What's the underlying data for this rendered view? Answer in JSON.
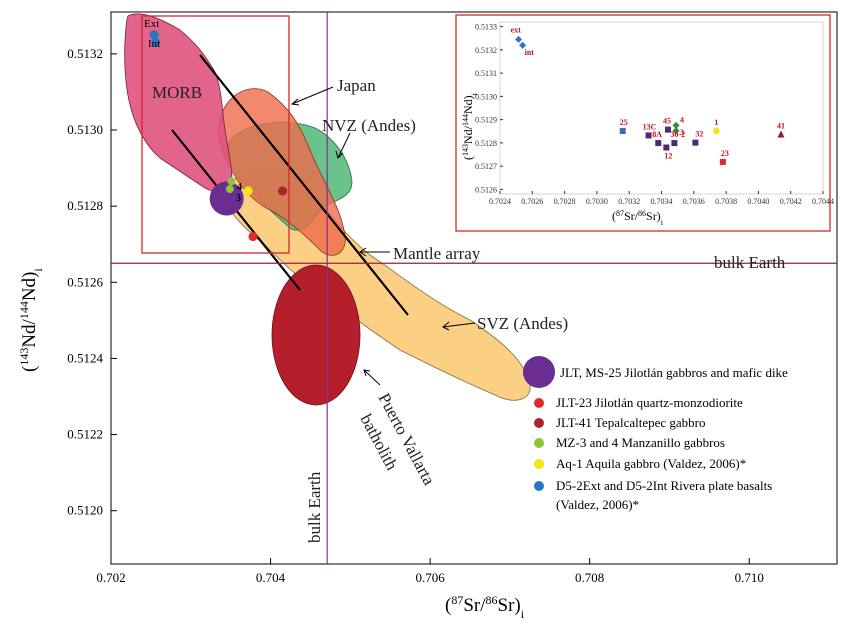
{
  "chart_data": {
    "type": "scatter",
    "title": "",
    "xlabel_main": "Sr/",
    "xlabel_sup1": "87",
    "xlabel_sup2": "86",
    "xlabel_tail": "Sr)",
    "xlabel_sub": "i",
    "ylabel_main": "Nd/",
    "ylabel_sup1": "143",
    "ylabel_sup2": "144",
    "ylabel_tail": "Nd)",
    "ylabel_sub": "i",
    "xlim": [
      0.702,
      0.7111
    ],
    "ylim": [
      0.51186,
      0.51331
    ],
    "xticks": [
      "0.702",
      "0.704",
      "0.706",
      "0.708",
      "0.710"
    ],
    "xtick_values": [
      0.702,
      0.704,
      0.706,
      0.708,
      0.71
    ],
    "yticks": [
      "0.5120",
      "0.5122",
      "0.5124",
      "0.5126",
      "0.5128",
      "0.5130",
      "0.5132"
    ],
    "ytick_values": [
      0.512,
      0.5122,
      0.5124,
      0.5126,
      0.5128,
      0.513,
      0.5132
    ],
    "reference_lines": {
      "bulk_earth_nd": 0.51265,
      "bulk_earth_sr": 0.70471,
      "label_horizontal": "bulk Earth",
      "label_vertical": "bulk Earth"
    },
    "regions": [
      {
        "name": "MORB",
        "label": "MORB"
      },
      {
        "name": "Japan",
        "label": "Japan"
      },
      {
        "name": "NVZ (Andes)",
        "label": "NVZ (Andes)"
      },
      {
        "name": "SVZ (Andes)",
        "label": "SVZ (Andes)"
      },
      {
        "name": "Mantle array",
        "label": "Mantle array"
      },
      {
        "name": "Puerto Vallarta batholith",
        "label_line1": "Puerto Vallarta",
        "label_line2": "batholith"
      }
    ],
    "series": [
      {
        "name": "JLT, MS-25 Jilotlán gabbros and mafic dike",
        "color": "#6a2e93",
        "points": [
          {
            "x": 0.70345,
            "y": 0.51282
          }
        ]
      },
      {
        "name": "JLT-23 Jilotlán quartz-monzodiorite",
        "color": "#e32a2a",
        "points": [
          {
            "x": 0.70378,
            "y": 0.51272
          }
        ]
      },
      {
        "name": "JLT-41 Tepalcaltepec gabbro",
        "color": "#a8252a",
        "points": [
          {
            "x": 0.70415,
            "y": 0.51284
          }
        ]
      },
      {
        "name": "MZ-3 and 4 Manzanillo gabbros",
        "color": "#8cc63f",
        "points": [
          {
            "x": 0.70349,
            "y": 0.512845,
            "label": "3"
          },
          {
            "x": 0.70351,
            "y": 0.512865,
            "label": "4"
          }
        ]
      },
      {
        "name": "Aq-1 Aquila gabbro (Valdez, 2006)*",
        "color": "#f5e60d",
        "points": [
          {
            "x": 0.70372,
            "y": 0.51284
          }
        ]
      },
      {
        "name": "D5-2Ext and D5-2Int Rivera plate basalts (Valdez, 2006)*",
        "color": "#2577c2",
        "points": [
          {
            "x": 0.70254,
            "y": 0.51325,
            "label": "Ext"
          },
          {
            "x": 0.70256,
            "y": 0.51323,
            "label": "Int"
          }
        ]
      }
    ],
    "legend": [
      {
        "label": "JLT, MS-25 Jilotlán gabbros and mafic dike",
        "color": "#6a2e93"
      },
      {
        "label": "JLT-23 Jilotlán quartz-monzodiorite",
        "color": "#e32a2a"
      },
      {
        "label": "JLT-41 Tepalcaltepec gabbro",
        "color": "#a8252a"
      },
      {
        "label": "MZ-3 and 4 Manzanillo gabbros",
        "color": "#8cc63f"
      },
      {
        "label": "Aq-1 Aquila gabbro (Valdez, 2006)*",
        "color": "#f5e60d"
      },
      {
        "label_line1": "D5-2Ext and D5-2Int Rivera plate basalts",
        "label_line2": "(Valdez, 2006)*",
        "color": "#2577c2"
      }
    ],
    "inset": {
      "type": "scatter",
      "xlim": [
        0.7024,
        0.7044
      ],
      "ylim": [
        0.51258,
        0.51332
      ],
      "xticks": [
        "0.7024",
        "0.7026",
        "0.7028",
        "0.7030",
        "0.7032",
        "0.7034",
        "0.7036",
        "0.7038",
        "0.7040",
        "0.7042",
        "0.7044"
      ],
      "xtick_values": [
        0.7024,
        0.7026,
        0.7028,
        0.703,
        0.7032,
        0.7034,
        0.7036,
        0.7038,
        0.704,
        0.7042,
        0.7044
      ],
      "yticks": [
        "0.5126",
        "0.5127",
        "0.5128",
        "0.5129",
        "0.5130",
        "0.5131",
        "0.5132",
        "0.5133"
      ],
      "ytick_values": [
        0.5126,
        0.5127,
        0.5128,
        0.5129,
        0.513,
        0.5131,
        0.5132,
        0.5133
      ],
      "xlabel_main": "Sr/",
      "xlabel_sup1": "87",
      "xlabel_sup2": "86",
      "xlabel_tail": "Sr)",
      "xlabel_sub": "i",
      "ylabel_main": "Nd/",
      "ylabel_sup1": "143",
      "ylabel_sup2": "144",
      "ylabel_tail": "Nd)",
      "ylabel_sub": "i",
      "points": [
        {
          "label": "ext",
          "x": 0.702515,
          "y": 0.513245,
          "color": "#2577c2",
          "shape": "diamond"
        },
        {
          "label": "int",
          "x": 0.70254,
          "y": 0.51322,
          "color": "#2577c2",
          "shape": "diamond"
        },
        {
          "label": "25",
          "x": 0.70316,
          "y": 0.512851,
          "color": "#3a6fb7",
          "shape": "square"
        },
        {
          "label": "13C",
          "x": 0.70332,
          "y": 0.512832,
          "color": "#4a2a72",
          "shape": "square"
        },
        {
          "label": "45",
          "x": 0.70344,
          "y": 0.512857,
          "color": "#4a2a72",
          "shape": "square"
        },
        {
          "label": "4",
          "x": 0.70349,
          "y": 0.512875,
          "color": "#2a8a3e",
          "shape": "diamond"
        },
        {
          "label": "3",
          "x": 0.70349,
          "y": 0.512852,
          "color": "#2a8a3e",
          "shape": "diamond"
        },
        {
          "label": "8A",
          "x": 0.70338,
          "y": 0.512799,
          "color": "#4a2a72",
          "shape": "square"
        },
        {
          "label": "30-2",
          "x": 0.70348,
          "y": 0.512799,
          "color": "#4a2a72",
          "shape": "square"
        },
        {
          "label": "12",
          "x": 0.70343,
          "y": 0.51278,
          "color": "#4a2a72",
          "shape": "square"
        },
        {
          "label": "32",
          "x": 0.70361,
          "y": 0.512801,
          "color": "#4a2a72",
          "shape": "square"
        },
        {
          "label": "1",
          "x": 0.70374,
          "y": 0.512851,
          "color": "#f5e60d",
          "shape": "circle"
        },
        {
          "label": "23",
          "x": 0.70378,
          "y": 0.512718,
          "color": "#e32a2a",
          "shape": "square"
        },
        {
          "label": "41",
          "x": 0.70414,
          "y": 0.512836,
          "color": "#8b1d24",
          "shape": "triangle"
        }
      ]
    }
  }
}
